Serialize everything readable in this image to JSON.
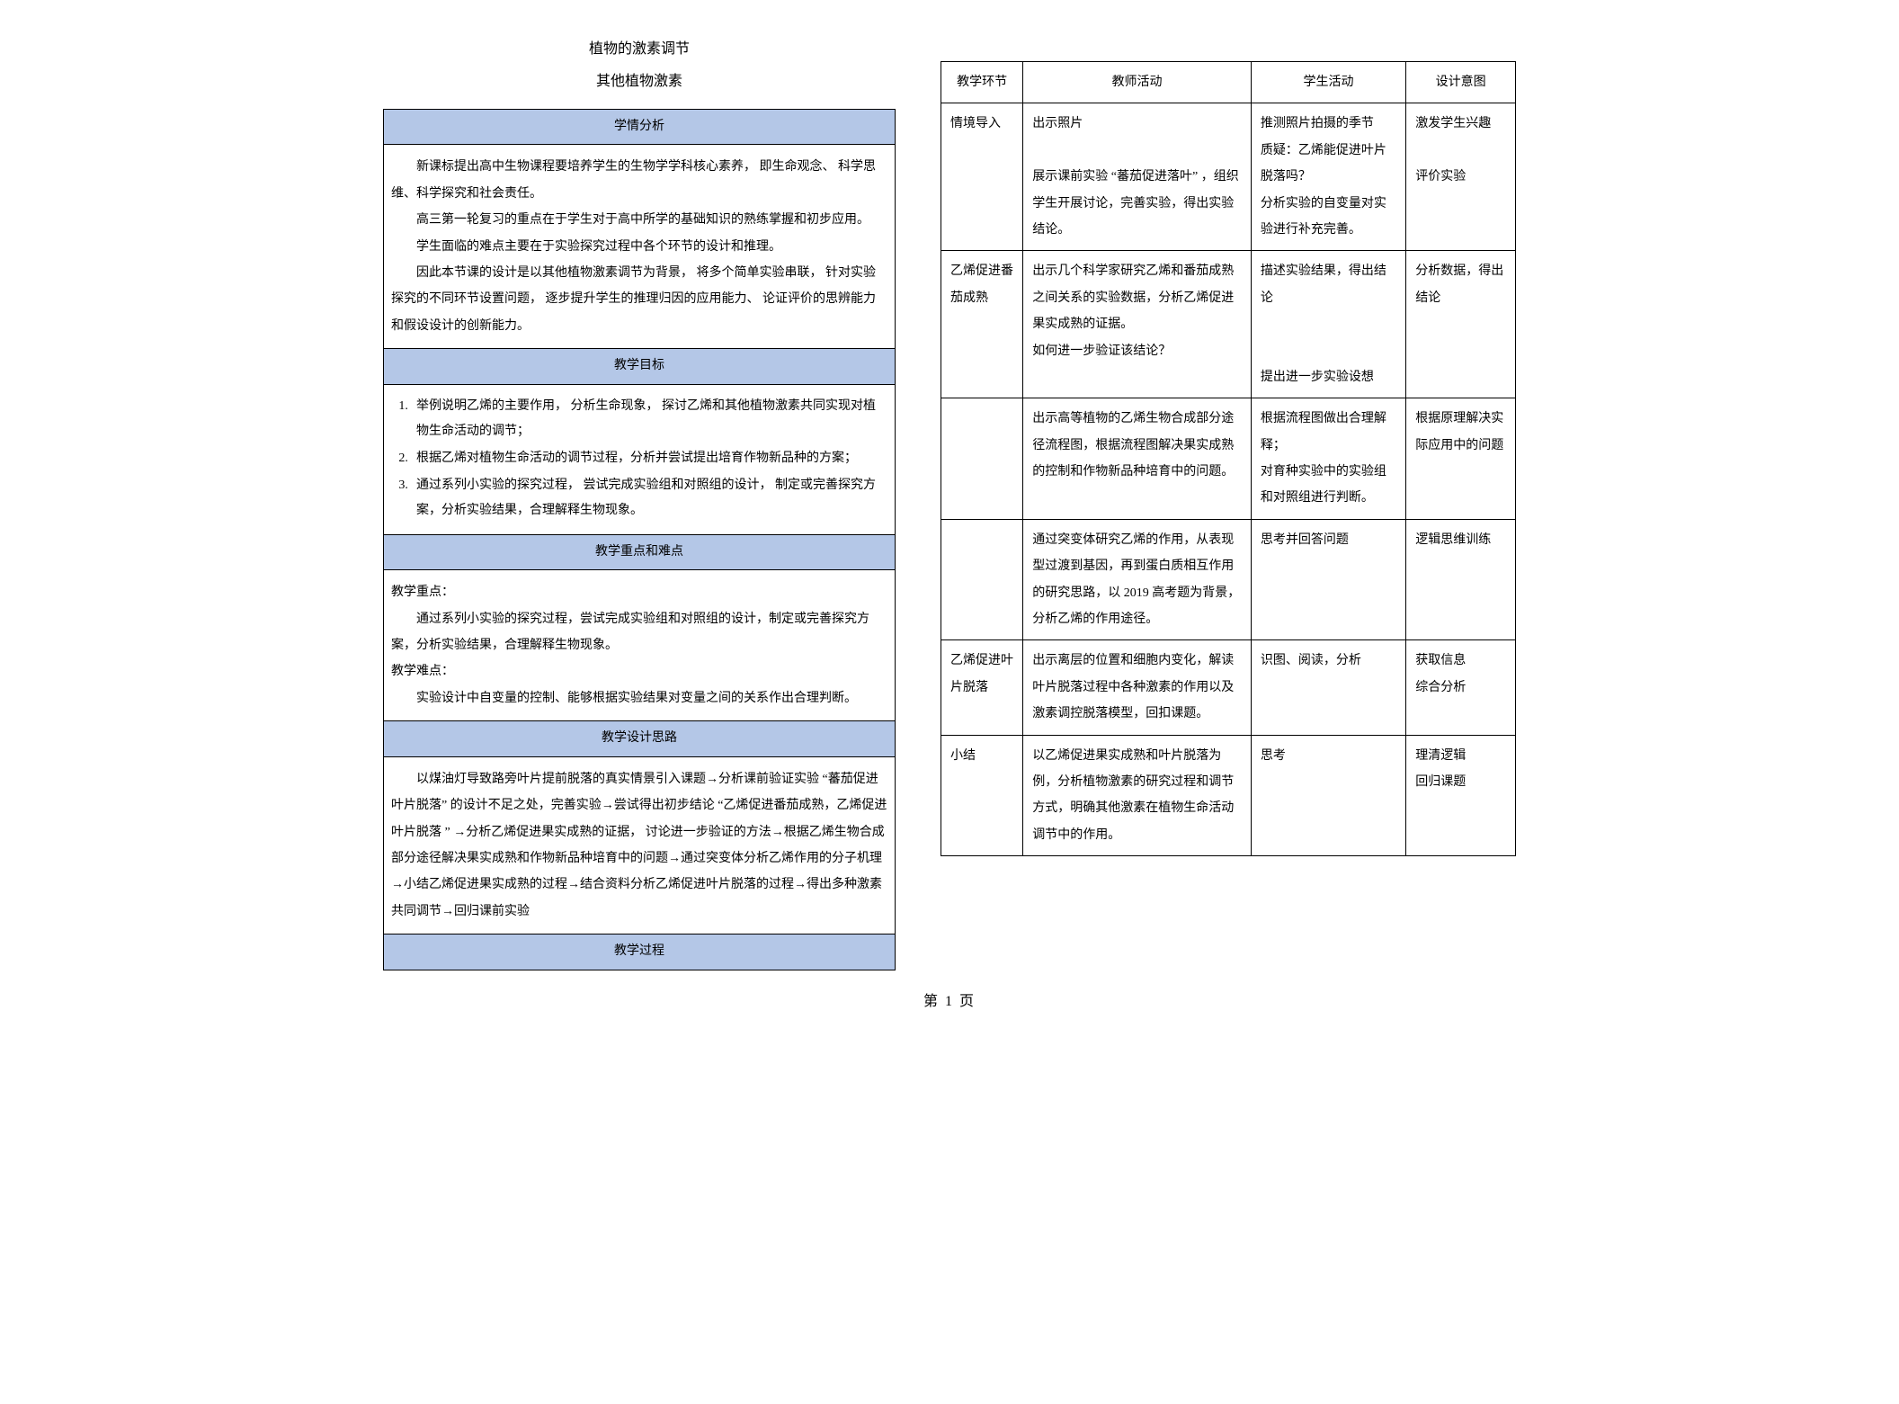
{
  "title_main": "植物的激素调节",
  "title_sub": "其他植物激素",
  "sections": {
    "analysis": {
      "header": "学情分析",
      "p1": "新课标提出高中生物课程要培养学生的生物学学科核心素养， 即生命观念、 科学思维、科学探究和社会责任。",
      "p2": "高三第一轮复习的重点在于学生对于高中所学的基础知识的熟练掌握和初步应用。",
      "p3": "学生面临的难点主要在于实验探究过程中各个环节的设计和推理。",
      "p4": "因此本节课的设计是以其他植物激素调节为背景， 将多个简单实验串联， 针对实验探究的不同环节设置问题， 逐步提升学生的推理归因的应用能力、 论证评价的思辨能力和假设设计的创新能力。"
    },
    "objectives": {
      "header": "教学目标",
      "items": [
        "举例说明乙烯的主要作用， 分析生命现象， 探讨乙烯和其他植物激素共同实现对植物生命活动的调节；",
        "根据乙烯对植物生命活动的调节过程，分析并尝试提出培育作物新品种的方案；",
        "通过系列小实验的探究过程， 尝试完成实验组和对照组的设计， 制定或完善探究方案，分析实验结果，合理解释生物现象。"
      ]
    },
    "focus": {
      "header": "教学重点和难点",
      "kp_label": "教学重点：",
      "kp_text": "通过系列小实验的探究过程，尝试完成实验组和对照组的设计，制定或完善探究方案，分析实验结果，合理解释生物现象。",
      "diff_label": "教学难点：",
      "diff_text": "实验设计中自变量的控制、能够根据实验结果对变量之间的关系作出合理判断。"
    },
    "design": {
      "header": "教学设计思路",
      "text": "以煤油灯导致路旁叶片提前脱落的真实情景引入课题→分析课前验证实验 “蕃茄促进叶片脱落” 的设计不足之处，完善实验→尝试得出初步结论 “乙烯促进番茄成熟，乙烯促进叶片脱落 ” →分析乙烯促进果实成熟的证据， 讨论进一步验证的方法→根据乙烯生物合成部分途径解决果实成熟和作物新品种培育中的问题→通过突变体分析乙烯作用的分子机理→小结乙烯促进果实成熟的过程→结合资料分析乙烯促进叶片脱落的过程→得出多种激素共同调节→回归课前实验"
    },
    "process": {
      "header": "教学过程"
    }
  },
  "table": {
    "headers": {
      "stage": "教学环节",
      "teacher": "教师活动",
      "student": "学生活动",
      "intent": "设计意图"
    },
    "rows": [
      {
        "stage": "情境导入",
        "teacher": "出示照片\n\n展示课前实验 “蕃茄促进落叶” ，组织学生开展讨论，完善实验，得出实验结论。",
        "student": "推测照片拍摄的季节\n质疑：乙烯能促进叶片脱落吗？\n分析实验的自变量对实验进行补充完善。",
        "intent": "激发学生兴趣\n\n评价实验"
      },
      {
        "stage": "乙烯促进番茄成熟",
        "teacher": "出示几个科学家研究乙烯和番茄成熟之间关系的实验数据，分析乙烯促进果实成熟的证据。\n如何进一步验证该结论？",
        "student": "描述实验结果，得出结论\n\n\n提出进一步实验设想",
        "intent": "分析数据，得出结论"
      },
      {
        "stage": "",
        "teacher": "出示高等植物的乙烯生物合成部分途径流程图，根据流程图解决果实成熟的控制和作物新品种培育中的问题。",
        "student": "根据流程图做出合理解释；\n对育种实验中的实验组和对照组进行判断。",
        "intent": "根据原理解决实际应用中的问题"
      },
      {
        "stage": "",
        "teacher": "通过突变体研究乙烯的作用，从表现型过渡到基因，再到蛋白质相互作用的研究思路，以 2019 高考题为背景，分析乙烯的作用途径。",
        "student": "思考并回答问题",
        "intent": "逻辑思维训练"
      },
      {
        "stage": "乙烯促进叶片脱落",
        "teacher": "出示离层的位置和细胞内变化，解读叶片脱落过程中各种激素的作用以及激素调控脱落模型，回扣课题。",
        "student": "识图、阅读，分析",
        "intent": "获取信息\n综合分析"
      },
      {
        "stage": "小结",
        "teacher": "以乙烯促进果实成熟和叶片脱落为例，分析植物激素的研究过程和调节方式，明确其他激素在植物生命活动调节中的作用。",
        "student": "思考",
        "intent": "理清逻辑\n回归课题"
      }
    ]
  },
  "page_num": "第 1 页"
}
